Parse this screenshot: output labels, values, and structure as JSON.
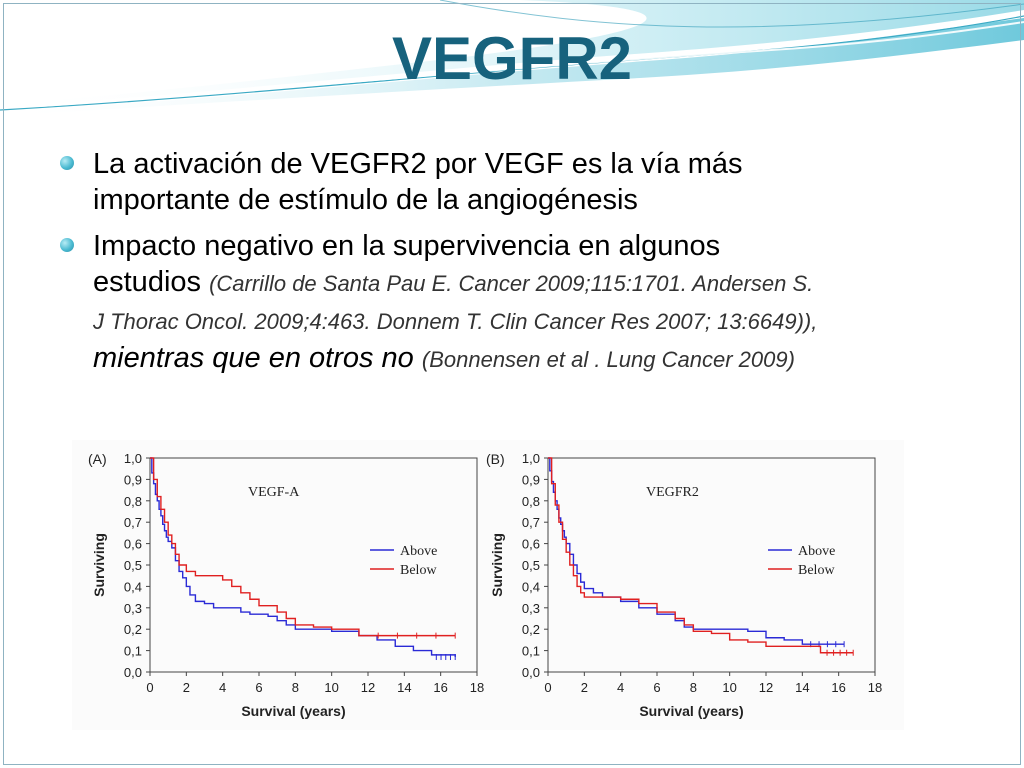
{
  "title": "VEGFR2",
  "bullets": [
    {
      "line1": "La activación de VEGFR2  por VEGF es la vía más",
      "line2": "importante de estímulo de la angiogénesis"
    },
    {
      "line1": "Impacto negativo en la supervivencia en algunos",
      "line2_main": "estudios",
      "line2_cite": "(Carrillo de Santa Pau E. Cancer 2009;115:1701. Andersen S.",
      "line3_cite": "J Thorac Oncol. 2009;4:463. Donnem T. Clin Cancer Res 2007; 13:6649)),",
      "line4_main": "mientras que en otros no",
      "line4_cite": "(Bonnensen et al . Lung Cancer 2009)"
    }
  ],
  "colors": {
    "title": "#17627d",
    "above": "#2a2ad6",
    "below": "#e02020",
    "bullet": "#4bbad1"
  },
  "chart_data": [
    {
      "type": "line",
      "panel_label": "(A)",
      "title": "VEGF-A",
      "xlabel": "Survival (years)",
      "ylabel": "Surviving",
      "xlim": [
        0,
        18
      ],
      "ylim": [
        0,
        1
      ],
      "xticks": [
        "0",
        "2",
        "4",
        "6",
        "8",
        "10",
        "12",
        "14",
        "16",
        "18"
      ],
      "yticks": [
        "0,0",
        "0,1",
        "0,2",
        "0,3",
        "0,4",
        "0,5",
        "0,6",
        "0,7",
        "0,8",
        "0,9",
        "1,0"
      ],
      "legend_position": "right",
      "series": [
        {
          "name": "Above",
          "color": "#2a2ad6",
          "points": [
            [
              0,
              1.0
            ],
            [
              0.1,
              0.93
            ],
            [
              0.2,
              0.88
            ],
            [
              0.3,
              0.83
            ],
            [
              0.4,
              0.8
            ],
            [
              0.5,
              0.76
            ],
            [
              0.6,
              0.73
            ],
            [
              0.7,
              0.69
            ],
            [
              0.8,
              0.66
            ],
            [
              0.9,
              0.63
            ],
            [
              1.0,
              0.61
            ],
            [
              1.2,
              0.58
            ],
            [
              1.4,
              0.52
            ],
            [
              1.6,
              0.47
            ],
            [
              1.8,
              0.44
            ],
            [
              2.0,
              0.4
            ],
            [
              2.2,
              0.36
            ],
            [
              2.5,
              0.33
            ],
            [
              3.0,
              0.32
            ],
            [
              3.5,
              0.3
            ],
            [
              4.5,
              0.3
            ],
            [
              5.0,
              0.28
            ],
            [
              5.5,
              0.27
            ],
            [
              6.5,
              0.26
            ],
            [
              7.0,
              0.24
            ],
            [
              7.5,
              0.22
            ],
            [
              8.0,
              0.2
            ],
            [
              10.0,
              0.19
            ],
            [
              11.5,
              0.17
            ],
            [
              12.5,
              0.15
            ],
            [
              13.5,
              0.12
            ],
            [
              14.5,
              0.1
            ],
            [
              15.5,
              0.08
            ],
            [
              16.8,
              0.07
            ]
          ]
        },
        {
          "name": "Below",
          "color": "#e02020",
          "points": [
            [
              0,
              1.0
            ],
            [
              0.2,
              0.9
            ],
            [
              0.4,
              0.82
            ],
            [
              0.6,
              0.76
            ],
            [
              0.8,
              0.7
            ],
            [
              1.0,
              0.64
            ],
            [
              1.2,
              0.6
            ],
            [
              1.4,
              0.55
            ],
            [
              1.6,
              0.5
            ],
            [
              2.0,
              0.47
            ],
            [
              2.5,
              0.45
            ],
            [
              4.0,
              0.43
            ],
            [
              4.5,
              0.4
            ],
            [
              5.0,
              0.37
            ],
            [
              5.5,
              0.34
            ],
            [
              6.0,
              0.31
            ],
            [
              7.0,
              0.28
            ],
            [
              7.5,
              0.25
            ],
            [
              8.0,
              0.22
            ],
            [
              9.0,
              0.21
            ],
            [
              10.0,
              0.2
            ],
            [
              11.0,
              0.2
            ],
            [
              11.5,
              0.17
            ],
            [
              16.8,
              0.17
            ]
          ]
        }
      ]
    },
    {
      "type": "line",
      "panel_label": "(B)",
      "title": "VEGFR2",
      "xlabel": "Survival (years)",
      "ylabel": "Surviving",
      "xlim": [
        0,
        18
      ],
      "ylim": [
        0,
        1
      ],
      "xticks": [
        "0",
        "2",
        "4",
        "6",
        "8",
        "10",
        "12",
        "14",
        "16",
        "18"
      ],
      "yticks": [
        "0,0",
        "0,1",
        "0,2",
        "0,3",
        "0,4",
        "0,5",
        "0,6",
        "0,7",
        "0,8",
        "0,9",
        "1,0"
      ],
      "legend_position": "right",
      "series": [
        {
          "name": "Above",
          "color": "#2a2ad6",
          "points": [
            [
              0,
              1.0
            ],
            [
              0.1,
              0.94
            ],
            [
              0.2,
              0.89
            ],
            [
              0.3,
              0.84
            ],
            [
              0.4,
              0.8
            ],
            [
              0.5,
              0.76
            ],
            [
              0.6,
              0.72
            ],
            [
              0.7,
              0.69
            ],
            [
              0.8,
              0.66
            ],
            [
              0.9,
              0.63
            ],
            [
              1.0,
              0.6
            ],
            [
              1.2,
              0.55
            ],
            [
              1.4,
              0.5
            ],
            [
              1.6,
              0.46
            ],
            [
              1.8,
              0.42
            ],
            [
              2.0,
              0.39
            ],
            [
              2.5,
              0.37
            ],
            [
              3.0,
              0.35
            ],
            [
              4.0,
              0.33
            ],
            [
              5.0,
              0.3
            ],
            [
              6.0,
              0.27
            ],
            [
              7.0,
              0.24
            ],
            [
              7.5,
              0.21
            ],
            [
              8.0,
              0.2
            ],
            [
              10.0,
              0.2
            ],
            [
              11.0,
              0.19
            ],
            [
              12.0,
              0.16
            ],
            [
              13.0,
              0.15
            ],
            [
              14.0,
              0.13
            ],
            [
              16.3,
              0.13
            ]
          ]
        },
        {
          "name": "Below",
          "color": "#e02020",
          "points": [
            [
              0,
              1.0
            ],
            [
              0.2,
              0.88
            ],
            [
              0.4,
              0.78
            ],
            [
              0.6,
              0.7
            ],
            [
              0.8,
              0.62
            ],
            [
              1.0,
              0.56
            ],
            [
              1.2,
              0.5
            ],
            [
              1.4,
              0.45
            ],
            [
              1.6,
              0.4
            ],
            [
              1.8,
              0.37
            ],
            [
              2.0,
              0.35
            ],
            [
              4.0,
              0.34
            ],
            [
              5.0,
              0.32
            ],
            [
              6.0,
              0.28
            ],
            [
              7.0,
              0.25
            ],
            [
              7.5,
              0.22
            ],
            [
              8.0,
              0.19
            ],
            [
              9.0,
              0.18
            ],
            [
              10.0,
              0.15
            ],
            [
              11.0,
              0.14
            ],
            [
              12.0,
              0.12
            ],
            [
              14.5,
              0.12
            ],
            [
              15.0,
              0.09
            ],
            [
              16.8,
              0.09
            ]
          ]
        }
      ]
    }
  ]
}
